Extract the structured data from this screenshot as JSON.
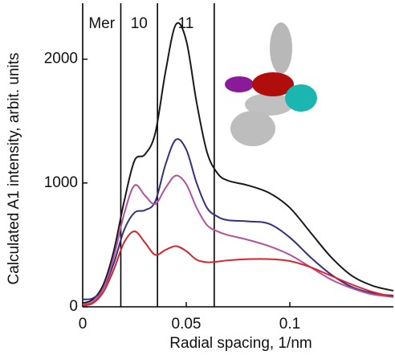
{
  "chart_data": {
    "type": "line",
    "x_label": "Radial spacing, 1/nm",
    "y_label": "Calculated A1 intensity, arbit. units",
    "x": [
      0,
      0.005,
      0.01,
      0.015,
      0.02,
      0.025,
      0.03,
      0.035,
      0.04,
      0.045,
      0.05,
      0.055,
      0.06,
      0.065,
      0.07,
      0.08,
      0.09,
      0.1,
      0.11,
      0.12,
      0.13,
      0.14,
      0.15
    ],
    "series": [
      {
        "color": "#1a1a1a",
        "values": [
          30,
          60,
          180,
          450,
          850,
          1180,
          1230,
          1400,
          1900,
          2280,
          2150,
          1650,
          1250,
          1080,
          1020,
          980,
          920,
          800,
          600,
          400,
          250,
          170,
          130
        ]
      },
      {
        "color": "#33307f",
        "values": [
          60,
          70,
          150,
          350,
          620,
          760,
          780,
          850,
          1150,
          1350,
          1270,
          1000,
          800,
          730,
          700,
          690,
          670,
          560,
          400,
          260,
          160,
          110,
          90
        ]
      },
      {
        "color": "#b5509a",
        "values": [
          20,
          40,
          150,
          400,
          750,
          980,
          900,
          830,
          960,
          1060,
          990,
          800,
          660,
          610,
          580,
          540,
          490,
          420,
          320,
          220,
          150,
          100,
          80
        ]
      },
      {
        "color": "#d4262c",
        "values": [
          10,
          30,
          120,
          300,
          520,
          610,
          520,
          420,
          460,
          490,
          450,
          380,
          360,
          365,
          375,
          385,
          385,
          370,
          320,
          250,
          180,
          120,
          80
        ]
      }
    ],
    "reference_lines": {
      "x": [
        0.0184,
        0.0361,
        0.0635
      ],
      "labels": [
        "Mer",
        "10",
        "11"
      ],
      "color": "#000000"
    },
    "xlim": [
      0,
      0.15
    ],
    "xticks": [
      0,
      0.05,
      0.1
    ],
    "ylim": [
      0,
      2400
    ],
    "yticks": [
      0,
      1000,
      2000
    ]
  }
}
